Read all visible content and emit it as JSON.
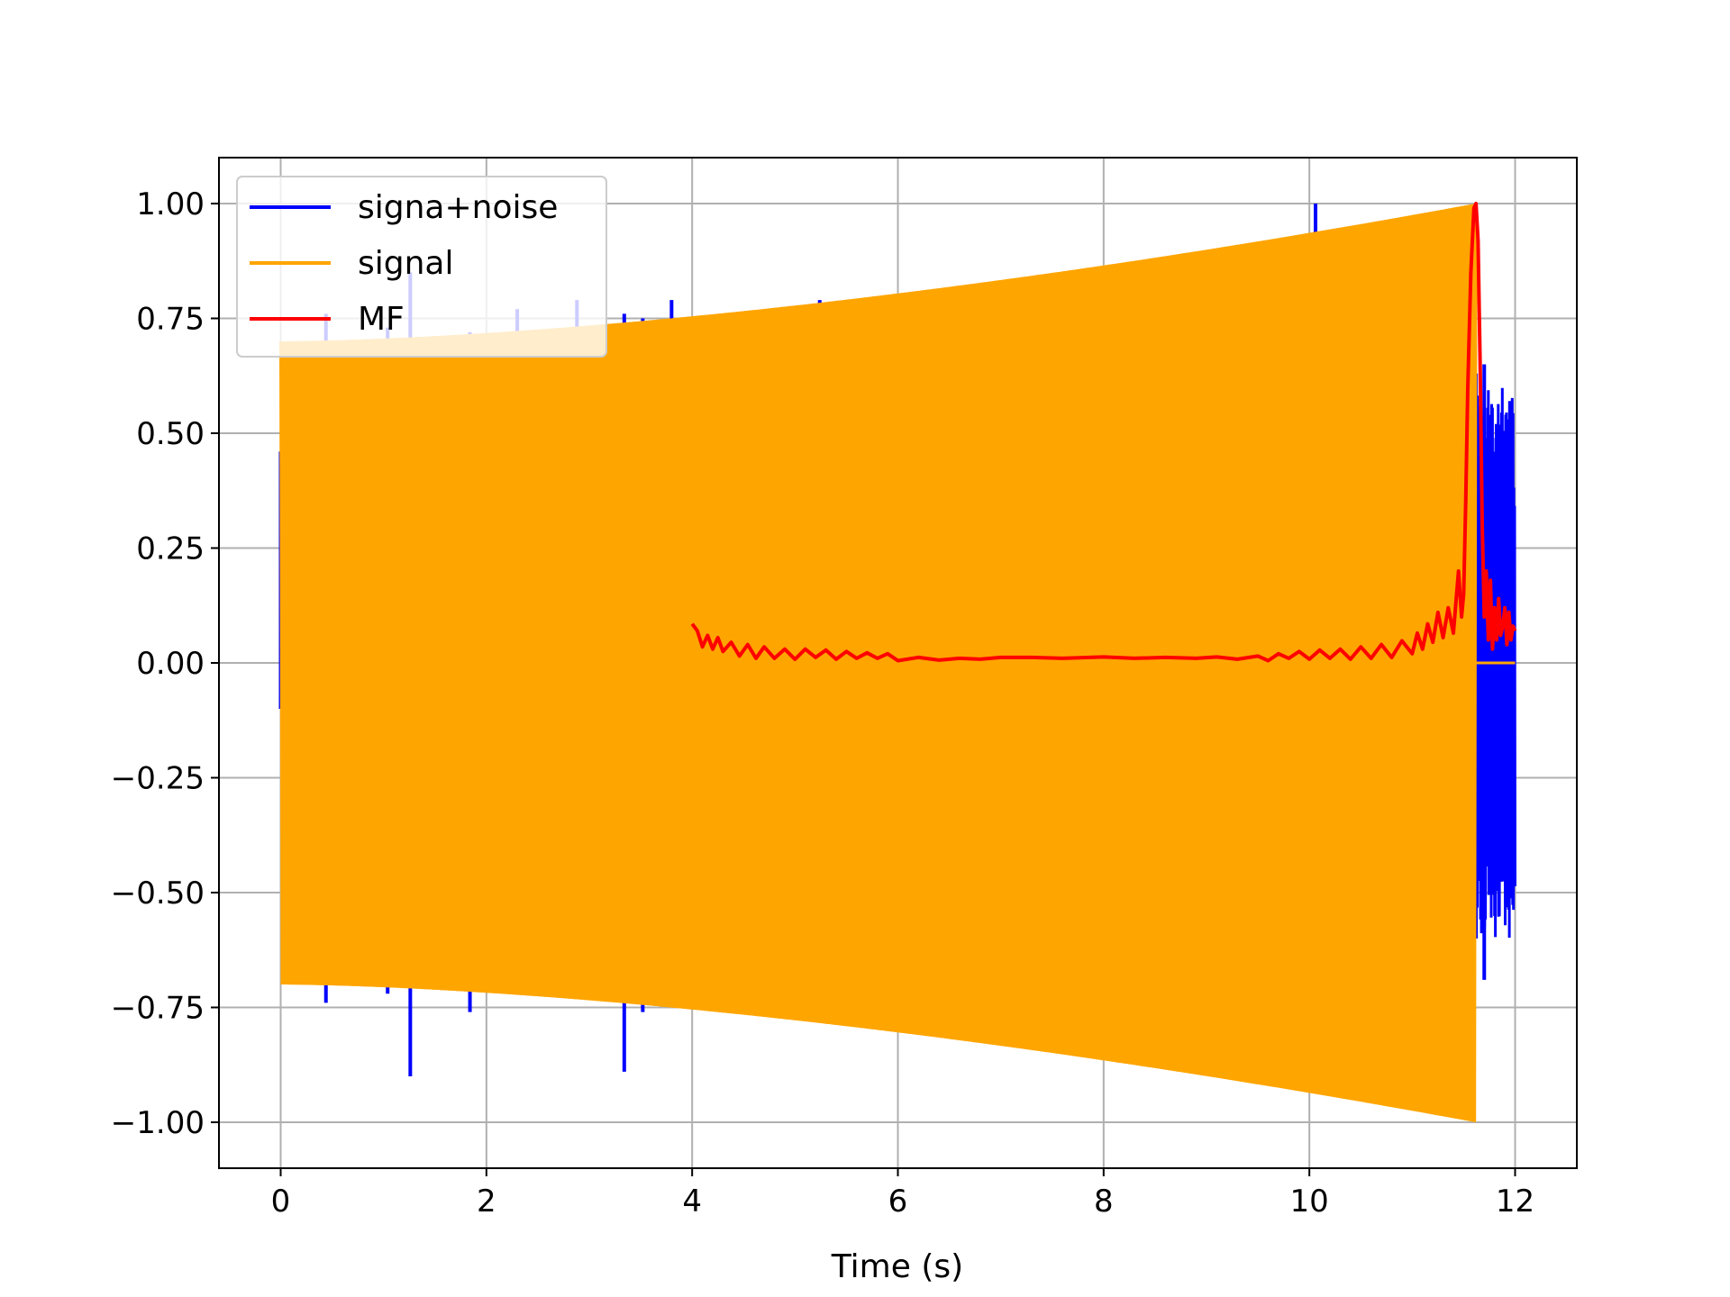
{
  "chart_data": {
    "type": "line",
    "title": "",
    "xlabel": "Time (s)",
    "ylabel": "",
    "xlim": [
      -0.6,
      12.6
    ],
    "ylim": [
      -1.1,
      1.1
    ],
    "xticks": [
      0,
      2,
      4,
      6,
      8,
      10,
      12
    ],
    "xtick_labels": [
      "0",
      "2",
      "4",
      "6",
      "8",
      "10",
      "12"
    ],
    "yticks": [
      1.0,
      0.75,
      0.5,
      0.25,
      0.0,
      -0.25,
      -0.5,
      -0.75,
      -1.0
    ],
    "ytick_labels": [
      "1.00",
      "0.75",
      "0.50",
      "0.25",
      "0.00",
      "−0.25",
      "−0.50",
      "−0.75",
      "−1.00"
    ],
    "grid": true,
    "legend_position": "top-left",
    "series": [
      {
        "name": "signa+noise",
        "color": "#0000ff",
        "style": "noisy-chirp",
        "duration": 12.0,
        "spikes": [
          {
            "x": 0.0,
            "lo": -0.1,
            "hi": 0.46
          },
          {
            "x": 0.44,
            "lo": -0.74,
            "hi": 0.76
          },
          {
            "x": 1.04,
            "lo": -0.72,
            "hi": 0.73
          },
          {
            "x": 1.26,
            "lo": -0.9,
            "hi": 0.85
          },
          {
            "x": 1.84,
            "lo": -0.76,
            "hi": 0.72
          },
          {
            "x": 2.3,
            "lo": -0.72,
            "hi": 0.77
          },
          {
            "x": 2.88,
            "lo": -0.73,
            "hi": 0.79
          },
          {
            "x": 3.34,
            "lo": -0.89,
            "hi": 0.76
          },
          {
            "x": 3.52,
            "lo": -0.76,
            "hi": 0.75
          },
          {
            "x": 3.8,
            "lo": -0.75,
            "hi": 0.79
          },
          {
            "x": 5.04,
            "lo": -0.77,
            "hi": 0.76
          },
          {
            "x": 5.24,
            "lo": -0.77,
            "hi": 0.79
          },
          {
            "x": 10.06,
            "lo": -0.9,
            "hi": 1.0
          },
          {
            "x": 11.62,
            "lo": -0.6,
            "hi": 0.63
          },
          {
            "x": 11.7,
            "lo": -0.69,
            "hi": 0.65
          },
          {
            "x": 11.76,
            "lo": -0.44,
            "hi": 0.54
          },
          {
            "x": 11.82,
            "lo": -0.38,
            "hi": 0.52
          },
          {
            "x": 11.87,
            "lo": -0.36,
            "hi": 0.48
          },
          {
            "x": 11.92,
            "lo": -0.48,
            "hi": 0.53
          },
          {
            "x": 11.95,
            "lo": -0.47,
            "hi": 0.57
          },
          {
            "x": 11.99,
            "lo": -0.45,
            "hi": 0.2
          }
        ]
      },
      {
        "name": "signal",
        "color": "#ffa500",
        "style": "chirp",
        "t_start": 0.0,
        "t_end": 11.62,
        "amp_start": 0.7,
        "amp_end": 1.0,
        "t_zero_end": 12.0
      },
      {
        "name": "MF",
        "color": "#ff0000",
        "style": "line",
        "x": [
          4.0,
          4.05,
          4.1,
          4.15,
          4.2,
          4.25,
          4.3,
          4.38,
          4.46,
          4.54,
          4.62,
          4.7,
          4.8,
          4.9,
          5.0,
          5.1,
          5.2,
          5.3,
          5.4,
          5.5,
          5.6,
          5.7,
          5.8,
          5.9,
          6.0,
          6.2,
          6.4,
          6.6,
          6.8,
          7.0,
          7.3,
          7.6,
          8.0,
          8.3,
          8.6,
          8.9,
          9.1,
          9.3,
          9.5,
          9.6,
          9.7,
          9.8,
          9.9,
          10.0,
          10.1,
          10.2,
          10.3,
          10.4,
          10.5,
          10.6,
          10.7,
          10.8,
          10.9,
          11.0,
          11.05,
          11.1,
          11.15,
          11.2,
          11.25,
          11.3,
          11.35,
          11.4,
          11.45,
          11.48,
          11.5,
          11.52,
          11.54,
          11.57,
          11.6,
          11.62,
          11.64,
          11.66,
          11.68,
          11.7,
          11.72,
          11.74,
          11.76,
          11.78,
          11.8,
          11.82,
          11.84,
          11.86,
          11.88,
          11.9,
          11.92,
          11.94,
          11.96,
          11.98,
          12.0
        ],
        "y": [
          0.085,
          0.07,
          0.035,
          0.06,
          0.03,
          0.055,
          0.025,
          0.045,
          0.015,
          0.04,
          0.01,
          0.035,
          0.01,
          0.03,
          0.008,
          0.03,
          0.012,
          0.028,
          0.008,
          0.025,
          0.01,
          0.022,
          0.01,
          0.02,
          0.005,
          0.012,
          0.006,
          0.01,
          0.008,
          0.012,
          0.012,
          0.01,
          0.013,
          0.01,
          0.012,
          0.01,
          0.013,
          0.008,
          0.015,
          0.005,
          0.02,
          0.01,
          0.025,
          0.008,
          0.028,
          0.01,
          0.03,
          0.008,
          0.035,
          0.01,
          0.04,
          0.012,
          0.048,
          0.02,
          0.065,
          0.03,
          0.085,
          0.045,
          0.11,
          0.055,
          0.12,
          0.065,
          0.2,
          0.1,
          0.15,
          0.35,
          0.6,
          0.85,
          0.99,
          1.0,
          0.92,
          0.65,
          0.3,
          0.1,
          0.2,
          0.05,
          0.18,
          0.03,
          0.12,
          0.05,
          0.14,
          0.06,
          0.08,
          0.12,
          0.04,
          0.11,
          0.05,
          0.08,
          0.07
        ]
      }
    ]
  }
}
